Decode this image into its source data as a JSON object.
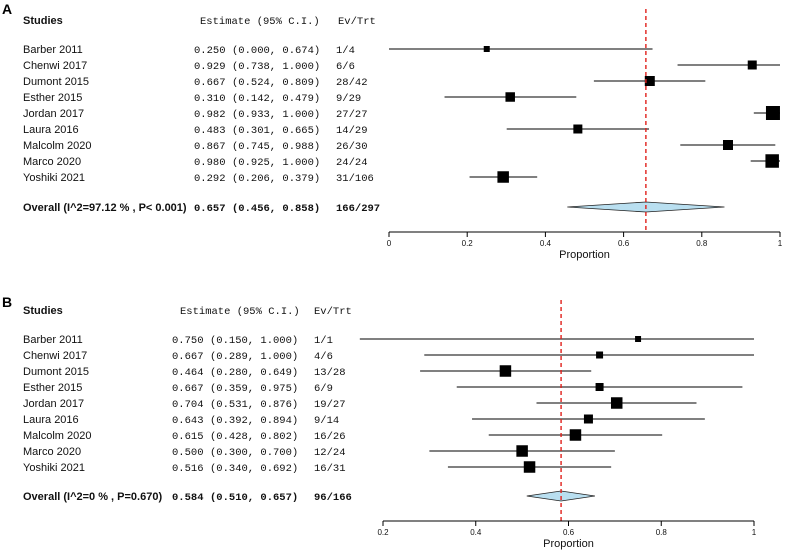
{
  "chart_data": [
    {
      "type": "forest",
      "panel_label": "A",
      "header": {
        "studies": "Studies",
        "estimate": "Estimate (95% C.I.)",
        "evtrt": "Ev/Trt"
      },
      "xlabel": "Proportion",
      "xlim": [
        0,
        1
      ],
      "xticks": [
        "0",
        "0.2",
        "0.4",
        "0.6",
        "0.8",
        "1"
      ],
      "tick_values": [
        0,
        0.2,
        0.4,
        0.6,
        0.8,
        1
      ],
      "reference_line": 0.657,
      "studies": [
        {
          "name": "Barber 2011",
          "est": 0.25,
          "lo": 0.0,
          "hi": 0.674,
          "est_text": "0.250",
          "ci_text": "(0.000, 0.674)",
          "evtrt": "1/4",
          "weight": 0.2
        },
        {
          "name": "Chenwi 2017",
          "est": 0.929,
          "lo": 0.738,
          "hi": 1.0,
          "est_text": "0.929",
          "ci_text": "(0.738, 1.000)",
          "evtrt": "6/6",
          "weight": 0.5
        },
        {
          "name": "Dumont 2015",
          "est": 0.667,
          "lo": 0.524,
          "hi": 0.809,
          "est_text": "0.667",
          "ci_text": "(0.524, 0.809)",
          "evtrt": "28/42",
          "weight": 0.6
        },
        {
          "name": "Esther 2015",
          "est": 0.31,
          "lo": 0.142,
          "hi": 0.479,
          "est_text": "0.310",
          "ci_text": "(0.142, 0.479)",
          "evtrt": "9/29",
          "weight": 0.55
        },
        {
          "name": "Jordan 2017",
          "est": 0.982,
          "lo": 0.933,
          "hi": 1.0,
          "est_text": "0.982",
          "ci_text": "(0.933, 1.000)",
          "evtrt": "27/27",
          "weight": 1.0
        },
        {
          "name": "Laura 2016",
          "est": 0.483,
          "lo": 0.301,
          "hi": 0.665,
          "est_text": "0.483",
          "ci_text": "(0.301, 0.665)",
          "evtrt": "14/29",
          "weight": 0.5
        },
        {
          "name": "Malcolm 2020",
          "est": 0.867,
          "lo": 0.745,
          "hi": 0.988,
          "est_text": "0.867",
          "ci_text": "(0.745, 0.988)",
          "evtrt": "26/30",
          "weight": 0.6
        },
        {
          "name": "Marco 2020",
          "est": 0.98,
          "lo": 0.925,
          "hi": 1.0,
          "est_text": "0.980",
          "ci_text": "(0.925, 1.000)",
          "evtrt": "24/24",
          "weight": 0.95
        },
        {
          "name": "Yoshiki 2021",
          "est": 0.292,
          "lo": 0.206,
          "hi": 0.379,
          "est_text": "0.292",
          "ci_text": "(0.206, 0.379)",
          "evtrt": "31/106",
          "weight": 0.75
        }
      ],
      "overall": {
        "label": "Overall (I^2=97.12 % , P< 0.001)",
        "est": 0.657,
        "lo": 0.456,
        "hi": 0.858,
        "est_text": "0.657",
        "ci_text": "(0.456, 0.858)",
        "evtrt": "166/297"
      }
    },
    {
      "type": "forest",
      "panel_label": "B",
      "header": {
        "studies": "Studies",
        "estimate": "Estimate (95% C.I.)",
        "evtrt": "Ev/Trt"
      },
      "xlabel": "Proportion",
      "xlim": [
        0.2,
        1
      ],
      "xticks": [
        "0.2",
        "0.4",
        "0.6",
        "0.8",
        "1"
      ],
      "tick_values": [
        0.2,
        0.4,
        0.6,
        0.8,
        1
      ],
      "reference_line": 0.584,
      "studies": [
        {
          "name": "Barber 2011",
          "est": 0.75,
          "lo": 0.15,
          "hi": 1.0,
          "est_text": "0.750",
          "ci_text": "(0.150, 1.000)",
          "evtrt": "1/1",
          "weight": 0.2
        },
        {
          "name": "Chenwi 2017",
          "est": 0.667,
          "lo": 0.289,
          "hi": 1.0,
          "est_text": "0.667",
          "ci_text": "(0.289, 1.000)",
          "evtrt": "4/6",
          "weight": 0.3
        },
        {
          "name": "Dumont 2015",
          "est": 0.464,
          "lo": 0.28,
          "hi": 0.649,
          "est_text": "0.464",
          "ci_text": "(0.280, 0.649)",
          "evtrt": "13/28",
          "weight": 0.75
        },
        {
          "name": "Esther 2015",
          "est": 0.667,
          "lo": 0.359,
          "hi": 0.975,
          "est_text": "0.667",
          "ci_text": "(0.359, 0.975)",
          "evtrt": "6/9",
          "weight": 0.4
        },
        {
          "name": "Jordan 2017",
          "est": 0.704,
          "lo": 0.531,
          "hi": 0.876,
          "est_text": "0.704",
          "ci_text": "(0.531, 0.876)",
          "evtrt": "19/27",
          "weight": 0.75
        },
        {
          "name": "Laura 2016",
          "est": 0.643,
          "lo": 0.392,
          "hi": 0.894,
          "est_text": "0.643",
          "ci_text": "(0.392, 0.894)",
          "evtrt": "9/14",
          "weight": 0.5
        },
        {
          "name": "Malcolm 2020",
          "est": 0.615,
          "lo": 0.428,
          "hi": 0.802,
          "est_text": "0.615",
          "ci_text": "(0.428, 0.802)",
          "evtrt": "16/26",
          "weight": 0.75
        },
        {
          "name": "Marco 2020",
          "est": 0.5,
          "lo": 0.3,
          "hi": 0.7,
          "est_text": "0.500",
          "ci_text": "(0.300, 0.700)",
          "evtrt": "12/24",
          "weight": 0.75
        },
        {
          "name": "Yoshiki 2021",
          "est": 0.516,
          "lo": 0.34,
          "hi": 0.692,
          "est_text": "0.516",
          "ci_text": "(0.340, 0.692)",
          "evtrt": "16/31",
          "weight": 0.75
        }
      ],
      "overall": {
        "label": "Overall (I^2=0 % , P=0.670)",
        "est": 0.584,
        "lo": 0.51,
        "hi": 0.657,
        "est_text": "0.584",
        "ci_text": "(0.510, 0.657)",
        "evtrt": "96/166"
      }
    }
  ],
  "colors": {
    "reference_line": "#e0201b",
    "diamond_fill": "#b9dff0",
    "marker": "#000000",
    "ci_line": "#000000"
  }
}
